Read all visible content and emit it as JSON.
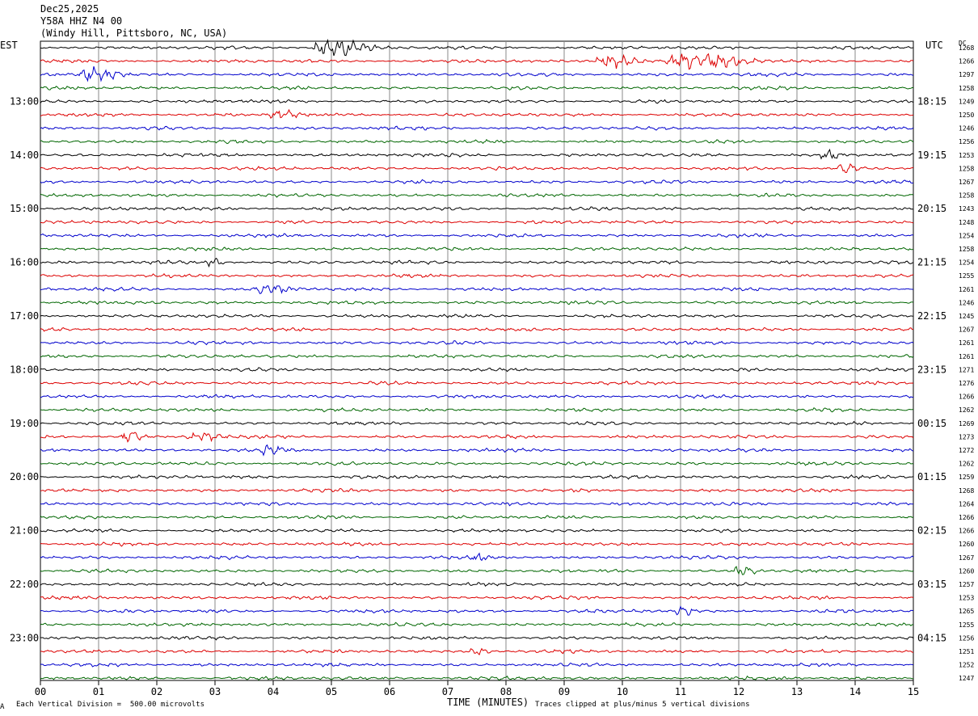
{
  "header": {
    "date": "Dec25,2025",
    "channel": "Y58A HHZ N4 00",
    "location": "(Windy Hill, Pittsboro, NC, USA)"
  },
  "left_zone_label": "EST",
  "right_zone_label": "UTC",
  "dc_label": "DC",
  "footer": {
    "scale_note": "Each Vertical Division =  500.00 microvolts",
    "xlabel": "TIME (MINUTES)",
    "clip_note": "Traces clipped at plus/minus 5 vertical divisions",
    "corner_mark": "A"
  },
  "colors": {
    "trace_cycle": [
      "#000000",
      "#dd0000",
      "#0000cc",
      "#006600"
    ],
    "grid": "#888888"
  },
  "chart_data": {
    "type": "line",
    "title": "Y58A HHZ N4 00",
    "xlabel": "TIME (MINUTES)",
    "xlim": [
      0,
      15
    ],
    "x_ticks": [
      "00",
      "01",
      "02",
      "03",
      "04",
      "05",
      "06",
      "07",
      "08",
      "09",
      "10",
      "11",
      "12",
      "13",
      "14",
      "15"
    ],
    "left_hour_labels": [
      "13:00",
      "14:00",
      "15:00",
      "16:00",
      "17:00",
      "18:00",
      "19:00",
      "20:00",
      "21:00",
      "22:00",
      "23:00"
    ],
    "right_hour_labels": [
      "18:15",
      "19:15",
      "20:15",
      "21:15",
      "22:15",
      "23:15",
      "00:15",
      "01:15",
      "02:15",
      "03:15",
      "04:15"
    ],
    "dc_offsets": [
      1268,
      1266,
      1297,
      1258,
      1249,
      1250,
      1246,
      1256,
      1253,
      1258,
      1267,
      1258,
      1243,
      1248,
      1254,
      1258,
      1254,
      1255,
      1261,
      1246,
      1245,
      1267,
      1261,
      1261,
      1271,
      1276,
      1266,
      1262,
      1269,
      1273,
      1272,
      1262,
      1259,
      1268,
      1264,
      1266,
      1266,
      1260,
      1267,
      1260,
      1257,
      1253,
      1265,
      1255,
      1256,
      1251,
      1252,
      1247
    ],
    "traces_per_hour": 4,
    "events": [
      {
        "trace": 0,
        "minute": 5.0,
        "width": 0.8,
        "amp": 3.0
      },
      {
        "trace": 1,
        "minute": 9.8,
        "width": 0.6,
        "amp": 2.2
      },
      {
        "trace": 1,
        "minute": 11.2,
        "width": 1.2,
        "amp": 2.3
      },
      {
        "trace": 2,
        "minute": 0.9,
        "width": 0.6,
        "amp": 2.4
      },
      {
        "trace": 5,
        "minute": 4.1,
        "width": 0.4,
        "amp": 1.4
      },
      {
        "trace": 8,
        "minute": 13.5,
        "width": 0.3,
        "amp": 1.4
      },
      {
        "trace": 9,
        "minute": 13.8,
        "width": 0.3,
        "amp": 1.6
      },
      {
        "trace": 16,
        "minute": 2.95,
        "width": 0.2,
        "amp": 2.0
      },
      {
        "trace": 18,
        "minute": 3.9,
        "width": 0.5,
        "amp": 1.4
      },
      {
        "trace": 29,
        "minute": 1.5,
        "width": 0.3,
        "amp": 2.2
      },
      {
        "trace": 29,
        "minute": 2.7,
        "width": 0.5,
        "amp": 1.4
      },
      {
        "trace": 30,
        "minute": 3.9,
        "width": 0.4,
        "amp": 1.5
      },
      {
        "trace": 38,
        "minute": 7.5,
        "width": 0.2,
        "amp": 1.6
      },
      {
        "trace": 39,
        "minute": 12.05,
        "width": 0.3,
        "amp": 1.5
      },
      {
        "trace": 42,
        "minute": 11.0,
        "width": 0.3,
        "amp": 1.6
      },
      {
        "trace": 45,
        "minute": 7.5,
        "width": 0.3,
        "amp": 1.3
      }
    ]
  }
}
